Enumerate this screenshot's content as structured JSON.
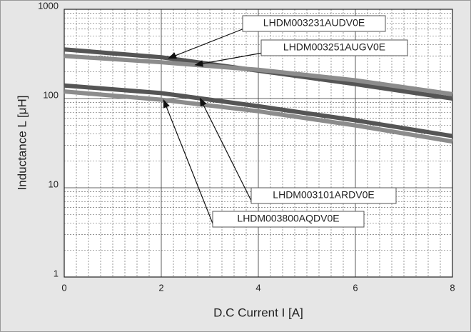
{
  "chart_data": {
    "type": "line",
    "x_label": "D.C Current I [A]",
    "y_label": "Inductance L  [μH]",
    "xlim": [
      0,
      8
    ],
    "xticks": [
      0,
      2,
      4,
      6,
      8
    ],
    "ylim": [
      1,
      1000
    ],
    "yticks": [
      1,
      10,
      100,
      1000
    ],
    "log_y": true,
    "grid": true,
    "x": [
      0,
      2,
      4,
      6,
      8
    ],
    "series": [
      {
        "name": "LHDM003231AUDV0E",
        "color": "#555555",
        "values": [
          355,
          290,
          205,
          145,
          100
        ]
      },
      {
        "name": "LHDM003251AUGV0E",
        "color": "#8c8c8c",
        "values": [
          300,
          255,
          210,
          160,
          112
        ]
      },
      {
        "name": "LHDM003101ARDV0E",
        "color": "#555555",
        "values": [
          140,
          115,
          82,
          57,
          38
        ]
      },
      {
        "name": "LHDM003800AQDV0E",
        "color": "#8c8c8c",
        "values": [
          120,
          97,
          72,
          50,
          33
        ]
      }
    ]
  }
}
